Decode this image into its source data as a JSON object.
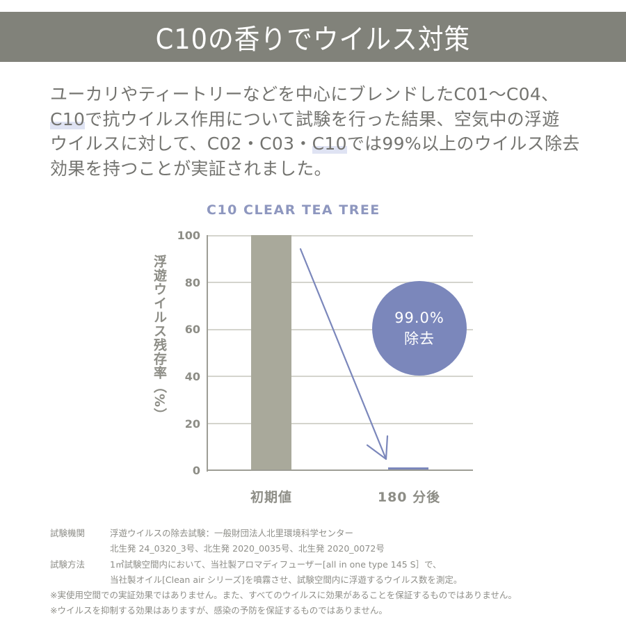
{
  "header": {
    "title": "C10の香りでウイルス対策"
  },
  "intro": {
    "lines": [
      {
        "pre": "",
        "hl": "",
        "post": "ユーカリやティートリーなどを中心にブレンドしたC01〜C04、"
      },
      {
        "pre": "",
        "hl": "C10",
        "post": "で抗ウイルス作用について試験を行った結果、空気中の浮遊"
      },
      {
        "pre": "ウイルスに対して、C02・C03・",
        "hl": "C10",
        "post": "では99%以上のウイルス除去"
      },
      {
        "pre": "",
        "hl": "",
        "post": "効果を持つことが実証されました。"
      }
    ]
  },
  "chart_data": {
    "type": "bar",
    "title": "C10 CLEAR TEA TREE",
    "categories": [
      "初期値",
      "180 分後"
    ],
    "values": [
      100,
      1.0
    ],
    "xlabel": "",
    "ylabel": "浮遊ウイルス残存率（%）",
    "ylim": [
      0,
      100
    ],
    "yticks": [
      0,
      20,
      40,
      60,
      80,
      100
    ],
    "grid": true,
    "colors": [
      "#a9a99b",
      "#7b87bb"
    ],
    "annotations": [
      {
        "type": "arrow",
        "from": "初期値",
        "to": "180 分後",
        "color": "#7b87bb"
      },
      {
        "type": "badge",
        "text_line1": "99.0%",
        "text_line2": "除去",
        "color": "#7b87bb"
      }
    ]
  },
  "chart_labels": {
    "title": "C10 CLEAR TEA TREE",
    "ylabel": "浮遊ウイルス残存率（%）",
    "ticks": [
      "100",
      "80",
      "60",
      "40",
      "20",
      "0"
    ],
    "cat0": "初期値",
    "cat1": "180 分後",
    "badge_line1": "99.0%",
    "badge_line2": "除去"
  },
  "notes": {
    "org_key": "試験機関",
    "org_lines": [
      "浮遊ウイルスの除去試験：一般財団法人北里環境科学センター",
      "北生発 24_0320_3号、北生発 2020_0035号、北生発 2020_0072号"
    ],
    "method_key": "試験方法",
    "method_lines": [
      "1㎥試験空間内において、当社製アロマディフューザー[all in one type 145 S］で、",
      "当社製オイル[Clean air シリーズ]を噴霧させ、試験空間内に浮遊するウイルス数を測定。"
    ],
    "disclaimers": [
      "※実使用空間での実証効果ではありません。また、すべてのウイルスに効果があることを保証するものではありません。",
      "※ウイルスを抑制する効果はありますが、感染の予防を保証するものではありません。"
    ]
  }
}
